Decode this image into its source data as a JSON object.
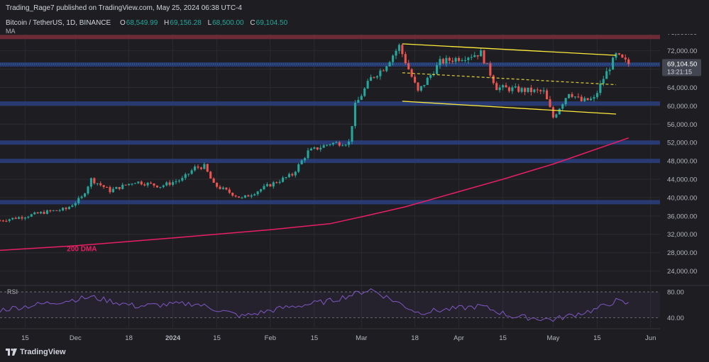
{
  "header": {
    "publisher": "Trading_Rage7 published on TradingView.com, May 25, 2024 06:38 UTC-4",
    "symbol": "Bitcoin / TetherUS, 1D, BINANCE",
    "ohlc": [
      {
        "label": "O",
        "value": "68,549.99"
      },
      {
        "label": "H",
        "value": "69,156.28"
      },
      {
        "label": "L",
        "value": "68,500.00"
      },
      {
        "label": "C",
        "value": "69,104.50"
      }
    ],
    "indicator": "MA"
  },
  "price_tag": {
    "price": "69,104.50",
    "countdown": "13:21:15"
  },
  "rsi_label": "RSI",
  "ma_label": "200 DMA",
  "footer": {
    "brand": "TradingView"
  },
  "colors": {
    "up": "#26a69a",
    "down": "#ef5350",
    "ma": "#e91e63",
    "channel": "#ffeb3b",
    "zone": "#2a3f7f",
    "resistance": "#7a2e39",
    "rsi": "#7e57c2"
  },
  "chart_data": {
    "type": "candlestick",
    "y_axis": {
      "ticks": [
        "76,000.00",
        "72,000.00",
        "68,000.00",
        "64,000.00",
        "60,000.00",
        "56,000.00",
        "52,000.00",
        "48,000.00",
        "44,000.00",
        "40,000.00",
        "36,000.00",
        "32,000.00",
        "28,000.00",
        "24,000.00"
      ],
      "range": [
        21000,
        77500
      ]
    },
    "x_axis": {
      "ticks": [
        "15",
        "Dec",
        "18",
        "2024",
        "15",
        "Feb",
        "15",
        "Mar",
        "18",
        "Apr",
        "15",
        "May",
        "15",
        "Jun"
      ],
      "range": [
        "2023-11-07",
        "2024-06-04"
      ]
    },
    "rsi_axis": {
      "ticks": [
        "80.00",
        "40.00"
      ],
      "range": [
        25,
        90
      ]
    },
    "horizontal_zones": [
      {
        "price": 75000,
        "kind": "resistance"
      },
      {
        "price": 69000,
        "kind": "support"
      },
      {
        "price": 60500,
        "kind": "support"
      },
      {
        "price": 52000,
        "kind": "support"
      },
      {
        "price": 48000,
        "kind": "support"
      },
      {
        "price": 39000,
        "kind": "support"
      }
    ],
    "channel": {
      "upper": [
        [
          "2024-03-14",
          73500
        ],
        [
          "2024-05-21",
          71000
        ]
      ],
      "lower": [
        [
          "2024-03-14",
          61000
        ],
        [
          "2024-05-21",
          58200
        ]
      ],
      "mid": [
        [
          "2024-03-14",
          67200
        ],
        [
          "2024-05-21",
          64600
        ]
      ]
    },
    "ma_200": {
      "dates": [
        "2023-11-07",
        "2023-12-01",
        "2024-01-01",
        "2024-02-01",
        "2024-02-20",
        "2024-03-01",
        "2024-03-15",
        "2024-04-01",
        "2024-04-15",
        "2024-05-01",
        "2024-05-25"
      ],
      "values": [
        28500,
        29500,
        31200,
        33000,
        34300,
        35800,
        38000,
        41300,
        44000,
        47300,
        53000
      ]
    },
    "price_path": [
      [
        "2023-11-07",
        35000
      ],
      [
        "2023-11-14",
        35800
      ],
      [
        "2023-11-21",
        36800
      ],
      [
        "2023-11-28",
        37500
      ],
      [
        "2023-12-03",
        40000
      ],
      [
        "2023-12-06",
        44000
      ],
      [
        "2023-12-12",
        41500
      ],
      [
        "2023-12-20",
        43500
      ],
      [
        "2023-12-28",
        42500
      ],
      [
        "2024-01-04",
        44000
      ],
      [
        "2024-01-08",
        46500
      ],
      [
        "2024-01-11",
        46800
      ],
      [
        "2024-01-14",
        42800
      ],
      [
        "2024-01-23",
        39800
      ],
      [
        "2024-01-31",
        42500
      ],
      [
        "2024-02-08",
        45000
      ],
      [
        "2024-02-13",
        50000
      ],
      [
        "2024-02-20",
        51800
      ],
      [
        "2024-02-26",
        52000
      ],
      [
        "2024-02-28",
        60000
      ],
      [
        "2024-03-04",
        66000
      ],
      [
        "2024-03-08",
        68200
      ],
      [
        "2024-03-13",
        73000
      ],
      [
        "2024-03-19",
        63000
      ],
      [
        "2024-03-26",
        69500
      ],
      [
        "2024-04-08",
        71500
      ],
      [
        "2024-04-13",
        64000
      ],
      [
        "2024-04-20",
        63500
      ],
      [
        "2024-04-28",
        63000
      ],
      [
        "2024-05-01",
        57500
      ],
      [
        "2024-05-06",
        63000
      ],
      [
        "2024-05-10",
        61000
      ],
      [
        "2024-05-14",
        61500
      ],
      [
        "2024-05-17",
        66000
      ],
      [
        "2024-05-21",
        71000
      ],
      [
        "2024-05-25",
        69104
      ]
    ],
    "rsi_path": [
      [
        "2023-11-07",
        52
      ],
      [
        "2023-12-06",
        72
      ],
      [
        "2023-12-20",
        58
      ],
      [
        "2024-01-08",
        62
      ],
      [
        "2024-01-23",
        42
      ],
      [
        "2024-02-05",
        55
      ],
      [
        "2024-02-20",
        66
      ],
      [
        "2024-03-04",
        84
      ],
      [
        "2024-03-19",
        48
      ],
      [
        "2024-04-08",
        58
      ],
      [
        "2024-04-18",
        42
      ],
      [
        "2024-05-01",
        37
      ],
      [
        "2024-05-14",
        52
      ],
      [
        "2024-05-21",
        66
      ],
      [
        "2024-05-25",
        61
      ]
    ]
  }
}
